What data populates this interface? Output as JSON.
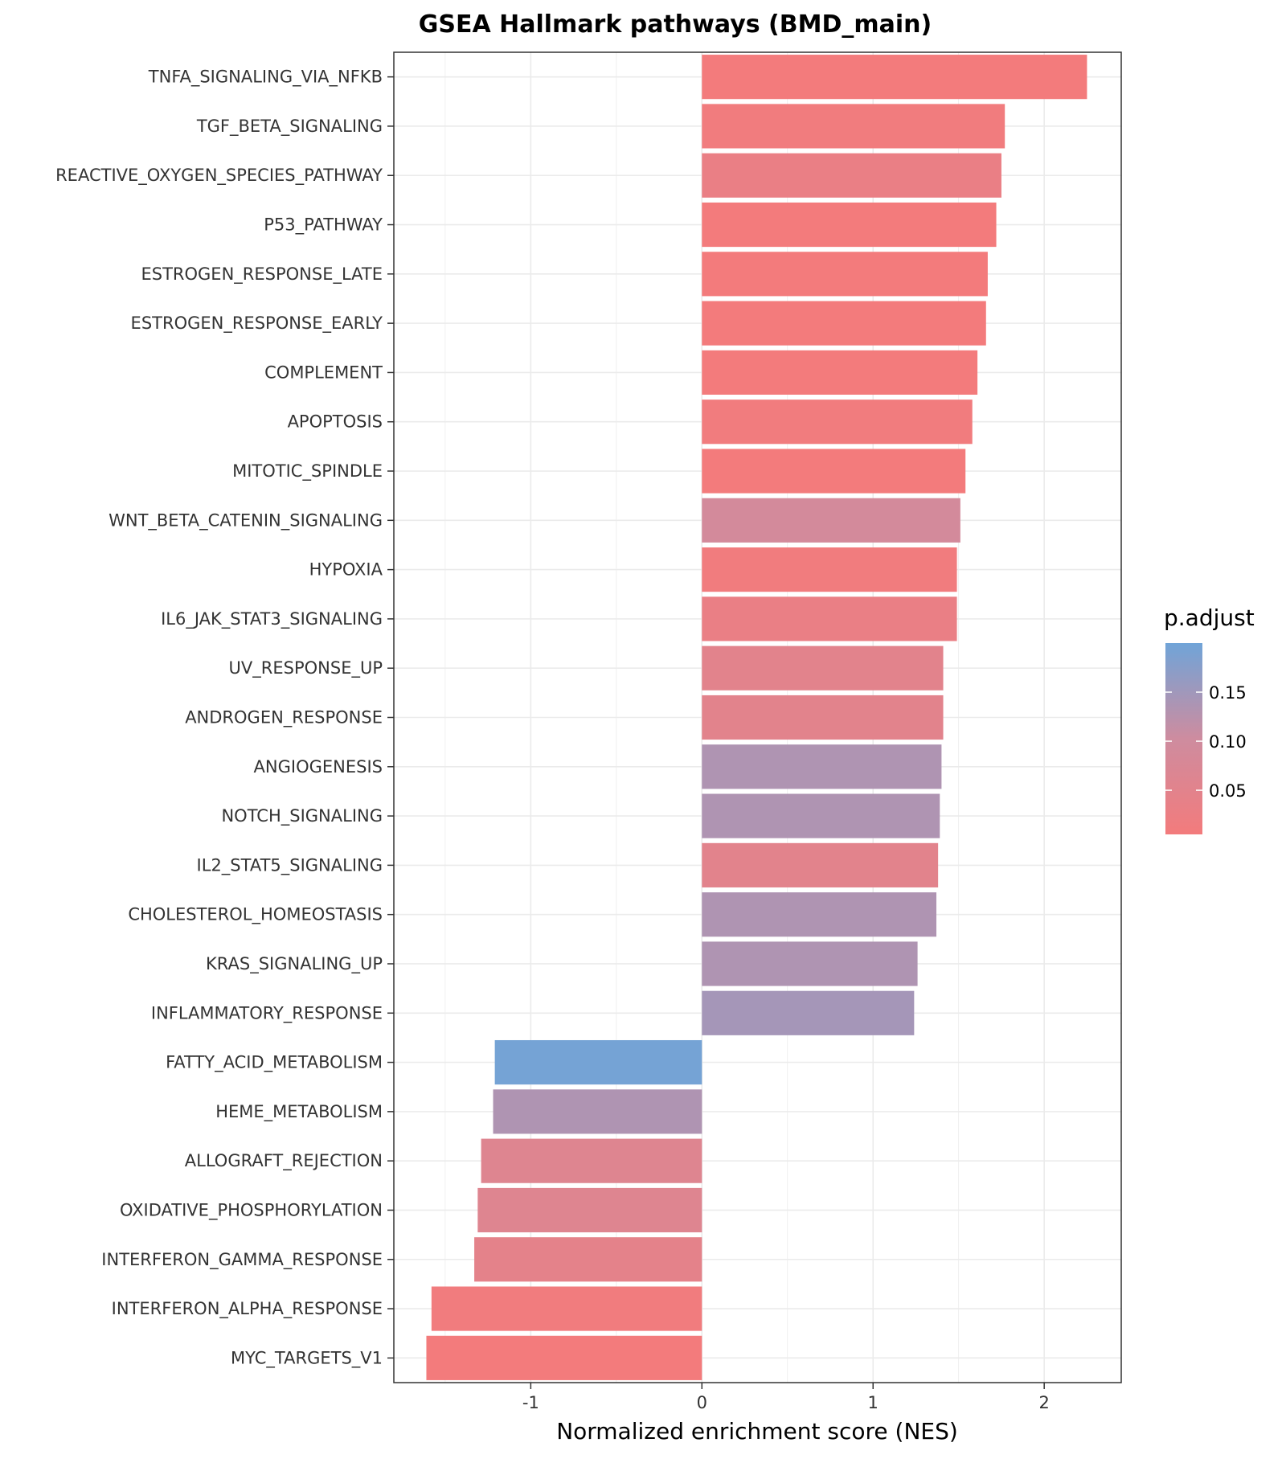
{
  "chart_data": {
    "type": "bar",
    "orientation": "horizontal",
    "title": "GSEA Hallmark pathways (BMD_main)",
    "xlabel": "Normalized enrichment score (NES)",
    "ylabel": "",
    "xlim": [
      -1.8,
      2.45
    ],
    "xticks": [
      -1,
      0,
      1,
      2
    ],
    "grid": true,
    "legend": {
      "title": "p.adjust",
      "placement": "right",
      "range": [
        0.005,
        0.2
      ],
      "ticks": [
        0.15,
        0.1,
        0.05
      ],
      "tick_labels": [
        "0.15",
        "0.10",
        "0.05"
      ],
      "low_color": "#F37B7C",
      "high_color": "#70A4D8"
    },
    "categories": [
      "TNFA_SIGNALING_VIA_NFKB",
      "TGF_BETA_SIGNALING",
      "REACTIVE_OXYGEN_SPECIES_PATHWAY",
      "P53_PATHWAY",
      "ESTROGEN_RESPONSE_LATE",
      "ESTROGEN_RESPONSE_EARLY",
      "COMPLEMENT",
      "APOPTOSIS",
      "MITOTIC_SPINDLE",
      "WNT_BETA_CATENIN_SIGNALING",
      "HYPOXIA",
      "IL6_JAK_STAT3_SIGNALING",
      "UV_RESPONSE_UP",
      "ANDROGEN_RESPONSE",
      "ANGIOGENESIS",
      "NOTCH_SIGNALING",
      "IL2_STAT5_SIGNALING",
      "CHOLESTEROL_HOMEOSTASIS",
      "KRAS_SIGNALING_UP",
      "INFLAMMATORY_RESPONSE",
      "FATTY_ACID_METABOLISM",
      "HEME_METABOLISM",
      "ALLOGRAFT_REJECTION",
      "OXIDATIVE_PHOSPHORYLATION",
      "INTERFERON_GAMMA_RESPONSE",
      "INTERFERON_ALPHA_RESPONSE",
      "MYC_TARGETS_V1"
    ],
    "values": [
      2.25,
      1.77,
      1.75,
      1.72,
      1.67,
      1.66,
      1.61,
      1.58,
      1.54,
      1.51,
      1.49,
      1.49,
      1.41,
      1.41,
      1.4,
      1.39,
      1.38,
      1.37,
      1.26,
      1.24,
      -1.21,
      -1.22,
      -1.29,
      -1.31,
      -1.33,
      -1.58,
      -1.61
    ],
    "p_adjust": [
      0.005,
      0.01,
      0.03,
      0.005,
      0.005,
      0.005,
      0.005,
      0.01,
      0.005,
      0.09,
      0.01,
      0.03,
      0.05,
      0.05,
      0.135,
      0.135,
      0.05,
      0.135,
      0.135,
      0.145,
      0.195,
      0.135,
      0.06,
      0.06,
      0.045,
      0.01,
      0.005
    ]
  }
}
